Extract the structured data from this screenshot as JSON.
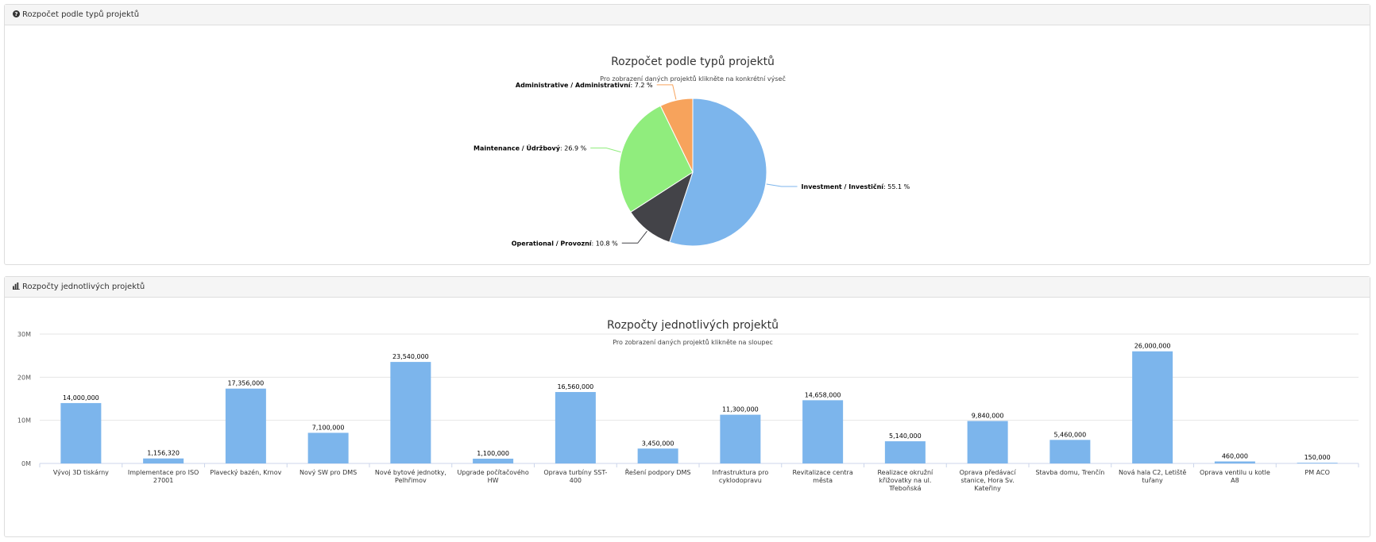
{
  "panel1": {
    "heading": "Rozpočet podle typů projektů",
    "icon": "question-circle-icon",
    "chart": {
      "title": "Rozpočet podle typů projektů",
      "subtitle": "Pro zobrazení daných projektů klikněte na konkrétní výseč"
    }
  },
  "panel2": {
    "heading": "Rozpočty jednotlivých projektů",
    "icon": "bar-chart-icon",
    "chart": {
      "title": "Rozpočty jednotlivých projektů",
      "subtitle": "Pro zobrazení daných projektů klikněte na sloupec"
    }
  },
  "chart_data": [
    {
      "type": "pie",
      "title": "Rozpočet podle typů projektů",
      "subtitle": "Pro zobrazení daných projektů klikněte na konkrétní výseč",
      "slices": [
        {
          "label": "Investment / Investiční",
          "value": 55.1,
          "display": "55.1 %",
          "color": "#7cb5ec"
        },
        {
          "label": "Operational / Provozní",
          "value": 10.8,
          "display": "10.8 %",
          "color": "#434348"
        },
        {
          "label": "Maintenance / Údržbový",
          "value": 26.9,
          "display": "26.9 %",
          "color": "#90ed7d"
        },
        {
          "label": "Administrative / Administrativní",
          "value": 7.2,
          "display": "7.2 %",
          "color": "#f7a35c"
        }
      ]
    },
    {
      "type": "bar",
      "title": "Rozpočty jednotlivých projektů",
      "subtitle": "Pro zobrazení daných projektů klikněte na sloupec",
      "color": "#7cb5ec",
      "ylim": [
        0,
        30000000
      ],
      "yticks": [
        "0M",
        "10M",
        "20M",
        "30M"
      ],
      "grid": true,
      "categories": [
        [
          "Vývoj 3D tiskárny"
        ],
        [
          "Implementace pro ISO",
          "27001"
        ],
        [
          "Plavecký bazén, Krnov"
        ],
        [
          "Nový SW pro DMS"
        ],
        [
          "Nové bytové jednotky,",
          "Pelhřimov"
        ],
        [
          "Upgrade počítačového",
          "HW"
        ],
        [
          "Oprava turbíny SST-",
          "400"
        ],
        [
          "Řešení podpory DMS"
        ],
        [
          "Infrastruktura pro",
          "cyklodopravu"
        ],
        [
          "Revitalizace centra",
          "města"
        ],
        [
          "Realizace okružní",
          "křižovatky na ul.",
          "Třeboňská"
        ],
        [
          "Oprava předávací",
          "stanice, Hora Sv.",
          "Kateřiny"
        ],
        [
          "Stavba domu, Trenčín"
        ],
        [
          "Nová hala C2, Letiště",
          "tuřany"
        ],
        [
          "Oprava ventilu u kotle",
          "A8"
        ],
        [
          "PM ACO"
        ]
      ],
      "values": [
        14000000,
        1156320,
        17356000,
        7100000,
        23540000,
        1100000,
        16560000,
        3450000,
        11300000,
        14658000,
        5140000,
        9840000,
        5460000,
        26000000,
        460000,
        150000
      ],
      "labels": [
        "14,000,000",
        "1,156,320",
        "17,356,000",
        "7,100,000",
        "23,540,000",
        "1,100,000",
        "16,560,000",
        "3,450,000",
        "11,300,000",
        "14,658,000",
        "5,140,000",
        "9,840,000",
        "5,460,000",
        "26,000,000",
        "460,000",
        "150,000"
      ]
    }
  ]
}
